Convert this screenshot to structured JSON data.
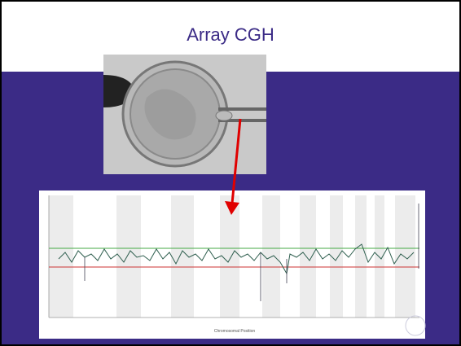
{
  "slide": {
    "title": "Array CGH",
    "chart_x_label": "Chromosomal Position"
  }
}
